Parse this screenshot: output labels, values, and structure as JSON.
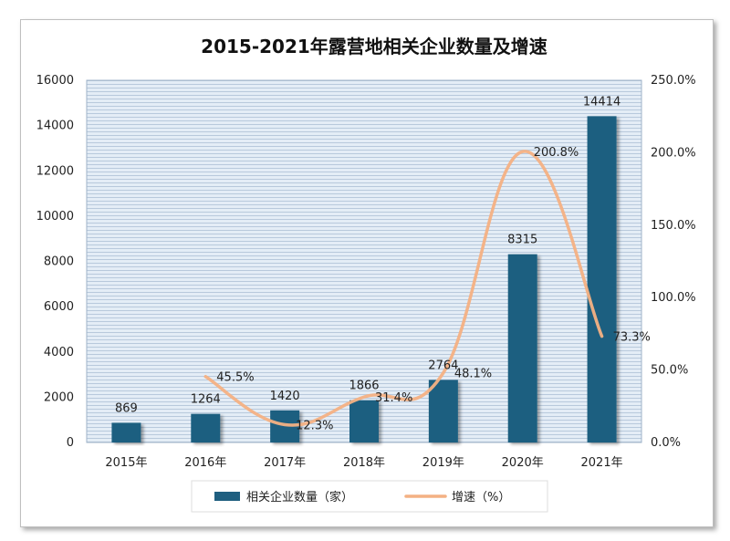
{
  "chart_data": {
    "type": "bar",
    "title": "2015-2021年露营地相关企业数量及增速",
    "categories": [
      "2015年",
      "2016年",
      "2017年",
      "2018年",
      "2019年",
      "2020年",
      "2021年"
    ],
    "series": [
      {
        "name": "相关企业数量（家）",
        "type": "bar",
        "axis": "left",
        "values": [
          869,
          1264,
          1420,
          1866,
          2764,
          8315,
          14414
        ],
        "labels": [
          "869",
          "1264",
          "1420",
          "1866",
          "2764",
          "8315",
          "14414"
        ],
        "color": "#1f5f80"
      },
      {
        "name": "增速（%）",
        "type": "line",
        "axis": "right",
        "values": [
          null,
          45.5,
          12.3,
          31.4,
          48.1,
          200.8,
          73.3
        ],
        "labels": [
          "",
          "45.5%",
          "12.3%",
          "31.4%",
          "48.1%",
          "200.8%",
          "73.3%"
        ],
        "color": "#f4b183"
      }
    ],
    "y_left": {
      "min": 0,
      "max": 16000,
      "step": 2000,
      "ticks": [
        "0",
        "2000",
        "4000",
        "6000",
        "8000",
        "10000",
        "12000",
        "14000",
        "16000"
      ]
    },
    "y_right": {
      "min": 0,
      "max": 250,
      "step": 50,
      "ticks": [
        "0.0%",
        "50.0%",
        "100.0%",
        "150.0%",
        "200.0%",
        "250.0%"
      ]
    },
    "grid": true,
    "legend": "bottom",
    "plot_background": "#dde7f1"
  }
}
